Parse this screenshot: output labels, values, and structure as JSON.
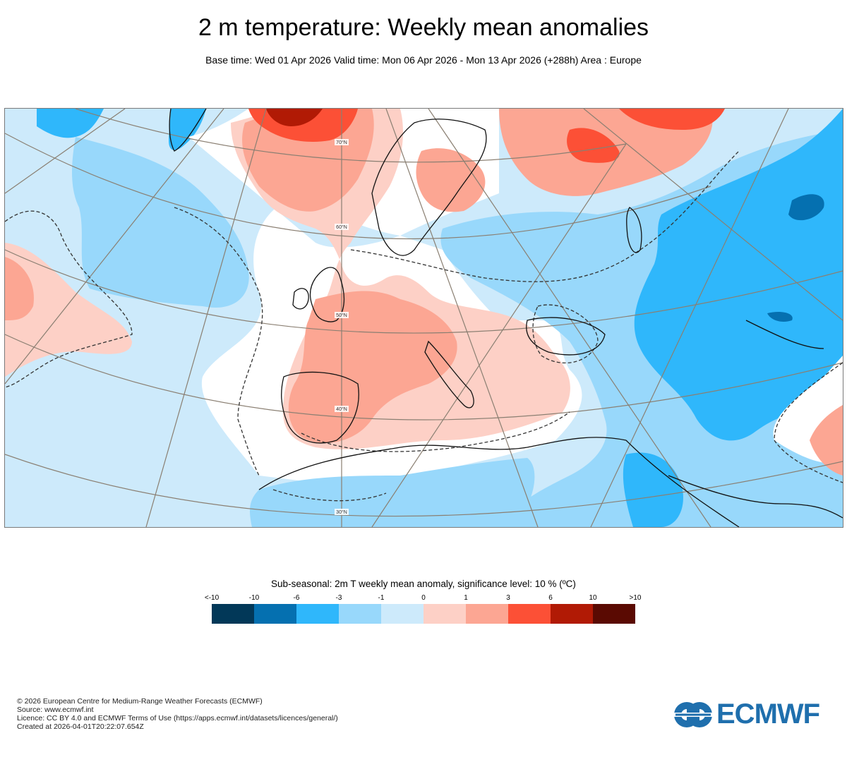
{
  "header": {
    "title": "2 m temperature: Weekly mean anomalies",
    "subtitle": "Base time: Wed 01 Apr 2026 Valid time: Mon 06 Apr 2026 - Mon 13 Apr 2026 (+288h) Area : Europe"
  },
  "map": {
    "area": "Europe",
    "latitude_labels": [
      "70°N",
      "60°N",
      "50°N",
      "40°N",
      "30°N"
    ],
    "colors": {
      "lt_minus10": "#023858",
      "minus10_minus6": "#0570b0",
      "minus6_minus3": "#2fb7fb",
      "minus3_minus1": "#98d8fb",
      "minus1_0": "#cdeafb",
      "near_zero": "#ffffff",
      "zero_1": "#fdd0c6",
      "one_3": "#fca693",
      "three_6": "#fc5036",
      "six_10": "#b11a05",
      "gt10": "#5a0a02"
    }
  },
  "legend": {
    "title": "Sub-seasonal: 2m T weekly mean anomaly, significance level: 10 % (ºC)",
    "ticks": [
      "<-10",
      "-10",
      "-6",
      "-3",
      "-1",
      "0",
      "1",
      "3",
      "6",
      "10",
      ">10"
    ],
    "bins": [
      {
        "range": "<-10",
        "color": "#023858"
      },
      {
        "range": "-10 to -6",
        "color": "#0570b0"
      },
      {
        "range": "-6 to -3",
        "color": "#2fb7fb"
      },
      {
        "range": "-3 to -1",
        "color": "#98d8fb"
      },
      {
        "range": "-1 to 0",
        "color": "#cdeafb"
      },
      {
        "range": "0 to 1",
        "color": "#fdd0c6"
      },
      {
        "range": "1 to 3",
        "color": "#fca693"
      },
      {
        "range": "3 to 6",
        "color": "#fc5036"
      },
      {
        "range": "6 to 10",
        "color": "#b11a05"
      },
      {
        "range": ">10",
        "color": "#5a0a02"
      }
    ]
  },
  "footer": {
    "copyright": "© 2026 European Centre for Medium-Range Weather Forecasts (ECMWF)",
    "source": "Source: www.ecmwf.int",
    "licence": "Licence: CC BY 4.0 and ECMWF Terms of Use (https://apps.ecmwf.int/datasets/licences/general/)",
    "created": "Created at 2026-04-01T20:22:07.654Z"
  },
  "logo": {
    "text": "ECMWF",
    "color": "#1f6fad"
  }
}
